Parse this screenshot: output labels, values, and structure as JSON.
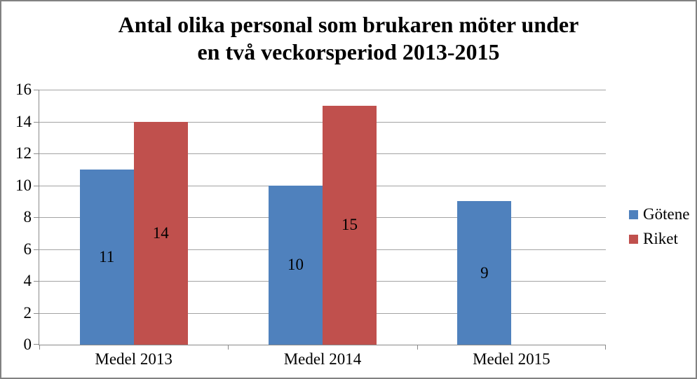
{
  "window": {
    "background": "#FFFFFF",
    "border_color": "#828282"
  },
  "chart_data": {
    "type": "bar",
    "title": "Antal olika personal som brukaren möter under en två veckorsperiod 2013-2015",
    "title_lines": [
      "Antal olika personal som brukaren möter under",
      "en två veckorsperiod 2013-2015"
    ],
    "categories": [
      "Medel 2013",
      "Medel 2014",
      "Medel 2015"
    ],
    "series": [
      {
        "name": "Götene",
        "color": "#4F81BD",
        "values": [
          11,
          10,
          9
        ]
      },
      {
        "name": "Riket",
        "color": "#C0504D",
        "values": [
          14,
          15,
          null
        ]
      }
    ],
    "data_labels": "center",
    "xlabel": "",
    "ylabel": "",
    "ylim": [
      0,
      16
    ],
    "yticks": [
      0,
      2,
      4,
      6,
      8,
      10,
      12,
      14,
      16
    ],
    "grid": "horizontal",
    "legend_position": "right",
    "bar_gap_ratio": 1.5,
    "axis_color": "#8A8A8A",
    "grid_color": "#A3A3A3"
  }
}
